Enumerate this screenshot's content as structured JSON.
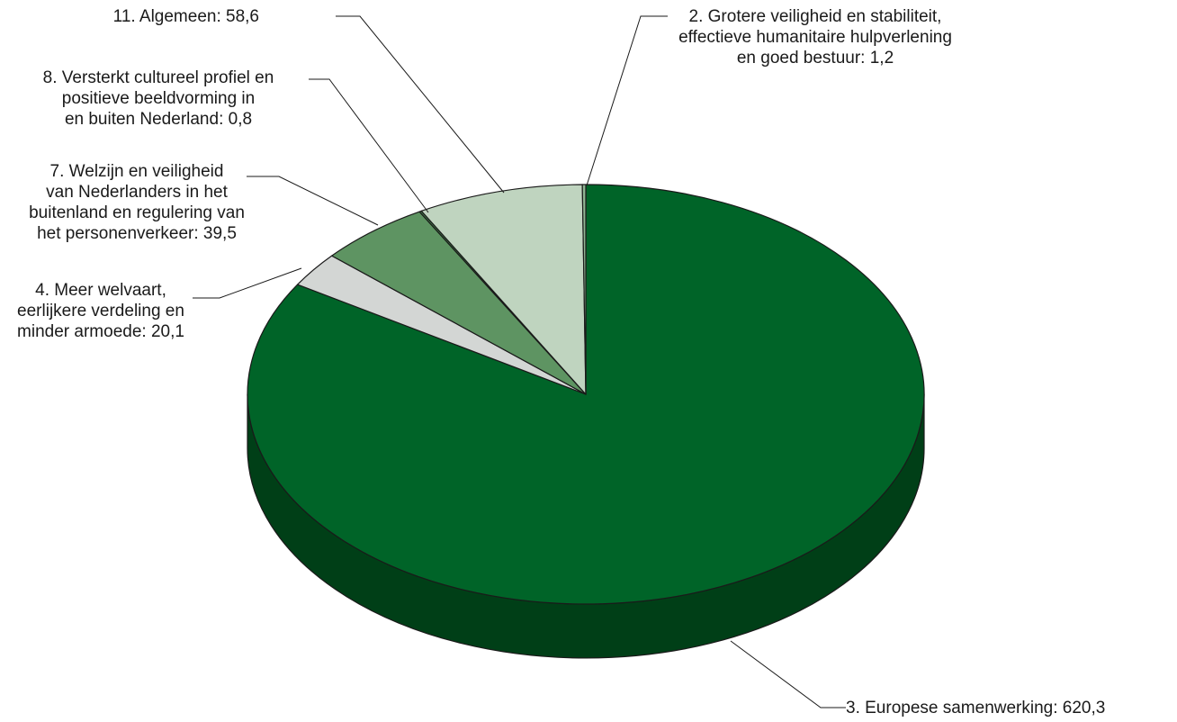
{
  "chart_data": {
    "type": "pie",
    "style": "3d",
    "unit": "",
    "slices": [
      {
        "label_lines": [
          "3. Europese samenwerking: 620,3"
        ],
        "value": 620.3,
        "color": "#006428"
      },
      {
        "label_lines": [
          "4. Meer welvaart,",
          "eerlijkere verdeling en",
          "minder armoede: 20,1"
        ],
        "value": 20.1,
        "color": "#d3d6d4"
      },
      {
        "label_lines": [
          "7. Welzijn en veiligheid",
          "van Nederlanders in het",
          "buitenland en regulering van",
          "het personenverkeer: 39,5"
        ],
        "value": 39.5,
        "color": "#5e9462"
      },
      {
        "label_lines": [
          "8. Versterkt cultureel profiel en",
          "positieve beeldvorming in",
          "en buiten Nederland: 0,8"
        ],
        "value": 0.8,
        "color": "#3d7a45"
      },
      {
        "label_lines": [
          "11. Algemeen: 58,6"
        ],
        "value": 58.6,
        "color": "#bfd4bf"
      },
      {
        "label_lines": [
          "2. Grotere veiligheid en stabiliteit,",
          "effectieve humanitaire hulpverlening",
          "en goed bestuur: 1,2"
        ],
        "value": 1.2,
        "color": "#8fb593"
      }
    ]
  }
}
